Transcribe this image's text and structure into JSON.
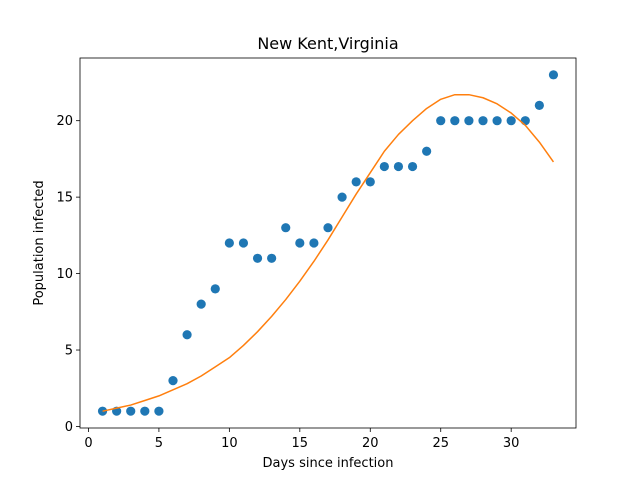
{
  "chart_data": {
    "type": "scatter",
    "title": "New Kent,Virginia",
    "xlabel": "Days since infection",
    "ylabel": "Population infected",
    "xlim": [
      -0.6,
      34.6
    ],
    "ylim": [
      -0.1,
      24.1
    ],
    "xticks": [
      0,
      5,
      10,
      15,
      20,
      25,
      30
    ],
    "yticks": [
      0,
      5,
      10,
      15,
      20
    ],
    "grid": false,
    "series": [
      {
        "type": "scatter",
        "color": "#1f77b4",
        "x": [
          1,
          2,
          3,
          4,
          5,
          6,
          7,
          8,
          9,
          10,
          11,
          12,
          13,
          14,
          15,
          16,
          17,
          18,
          19,
          20,
          21,
          22,
          23,
          24,
          25,
          26,
          27,
          28,
          29,
          30,
          31,
          32,
          33
        ],
        "y": [
          1,
          1,
          1,
          1,
          1,
          3,
          6,
          8,
          9,
          12,
          12,
          11,
          11,
          13,
          12,
          12,
          13,
          15,
          16,
          16,
          17,
          17,
          17,
          18,
          20,
          20,
          20,
          20,
          20,
          20,
          20,
          21,
          23
        ]
      },
      {
        "type": "line",
        "color": "#ff7f0e",
        "x": [
          1,
          2,
          3,
          4,
          5,
          6,
          7,
          8,
          9,
          10,
          11,
          12,
          13,
          14,
          15,
          16,
          17,
          18,
          19,
          20,
          21,
          22,
          23,
          24,
          25,
          26,
          27,
          28,
          29,
          30,
          31,
          32,
          33
        ],
        "y": [
          1.0,
          1.2,
          1.4,
          1.7,
          2.0,
          2.4,
          2.8,
          3.3,
          3.9,
          4.5,
          5.3,
          6.2,
          7.2,
          8.3,
          9.5,
          10.8,
          12.2,
          13.7,
          15.2,
          16.6,
          18.0,
          19.1,
          20.0,
          20.8,
          21.4,
          21.7,
          21.7,
          21.5,
          21.1,
          20.5,
          19.7,
          18.6,
          17.3
        ]
      }
    ]
  }
}
